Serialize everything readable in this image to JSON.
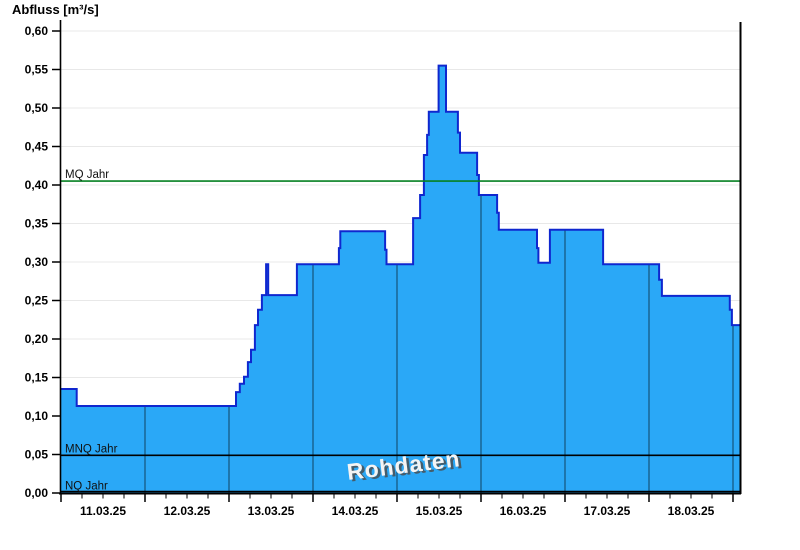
{
  "chart_data": {
    "type": "area",
    "title": "Abfluss [m³/s]",
    "watermark": "Rohdaten",
    "series": [
      {
        "name": "Rohdaten",
        "unit": "m³/s",
        "step": true,
        "points_hours_value": [
          [
            0,
            0.135
          ],
          [
            4.5,
            0.113
          ],
          [
            50,
            0.131
          ],
          [
            51.1,
            0.142
          ],
          [
            52.3,
            0.151
          ],
          [
            53.4,
            0.17
          ],
          [
            54.3,
            0.186
          ],
          [
            55.4,
            0.218
          ],
          [
            56.3,
            0.238
          ],
          [
            57.4,
            0.257
          ],
          [
            58.6,
            0.297
          ],
          [
            59.2,
            0.257
          ],
          [
            67.4,
            0.297
          ],
          [
            79.4,
            0.318
          ],
          [
            79.8,
            0.34
          ],
          [
            92.6,
            0.316
          ],
          [
            93.0,
            0.297
          ],
          [
            100.6,
            0.357
          ],
          [
            102.6,
            0.387
          ],
          [
            103.7,
            0.439
          ],
          [
            104.6,
            0.465
          ],
          [
            105.1,
            0.495
          ],
          [
            107.9,
            0.555
          ],
          [
            110.0,
            0.495
          ],
          [
            113.4,
            0.468
          ],
          [
            114.0,
            0.442
          ],
          [
            118.9,
            0.413
          ],
          [
            119.4,
            0.387
          ],
          [
            124.6,
            0.364
          ],
          [
            125.1,
            0.342
          ],
          [
            136.0,
            0.318
          ],
          [
            136.4,
            0.299
          ],
          [
            139.7,
            0.342
          ],
          [
            154.9,
            0.297
          ],
          [
            170.9,
            0.277
          ],
          [
            171.7,
            0.256
          ],
          [
            191.1,
            0.238
          ],
          [
            191.7,
            0.218
          ]
        ]
      }
    ],
    "x_axis": {
      "tick_labels": [
        "11.03.25",
        "12.03.25",
        "13.03.25",
        "14.03.25",
        "15.03.25",
        "16.03.25",
        "17.03.25",
        "18.03.25"
      ],
      "hours_total": 194.3,
      "major_tick_hours": 24,
      "minor_tick_hours": 6
    },
    "y_axis": {
      "label": "Abfluss [m³/s]",
      "min": 0,
      "max": 0.6,
      "tick_step": 0.05,
      "tick_labels": [
        "0,00",
        "0,05",
        "0,10",
        "0,15",
        "0,20",
        "0,25",
        "0,30",
        "0,35",
        "0,40",
        "0,45",
        "0,50",
        "0,55",
        "0,60"
      ]
    },
    "ref_lines": [
      {
        "label": "NQ Jahr",
        "value": 0.002,
        "color": "#000000"
      },
      {
        "label": "MNQ Jahr",
        "value": 0.049,
        "color": "#000000"
      },
      {
        "label": "MQ Jahr",
        "value": 0.405,
        "color": "#068022"
      }
    ],
    "colors": {
      "fill": "#2aa8f7",
      "stroke": "#0f27cf",
      "grid_h": "#e8e8e8",
      "grid_v_in_area": "#15547b",
      "axis": "#000000"
    },
    "grid": true,
    "legend_position": "none"
  }
}
